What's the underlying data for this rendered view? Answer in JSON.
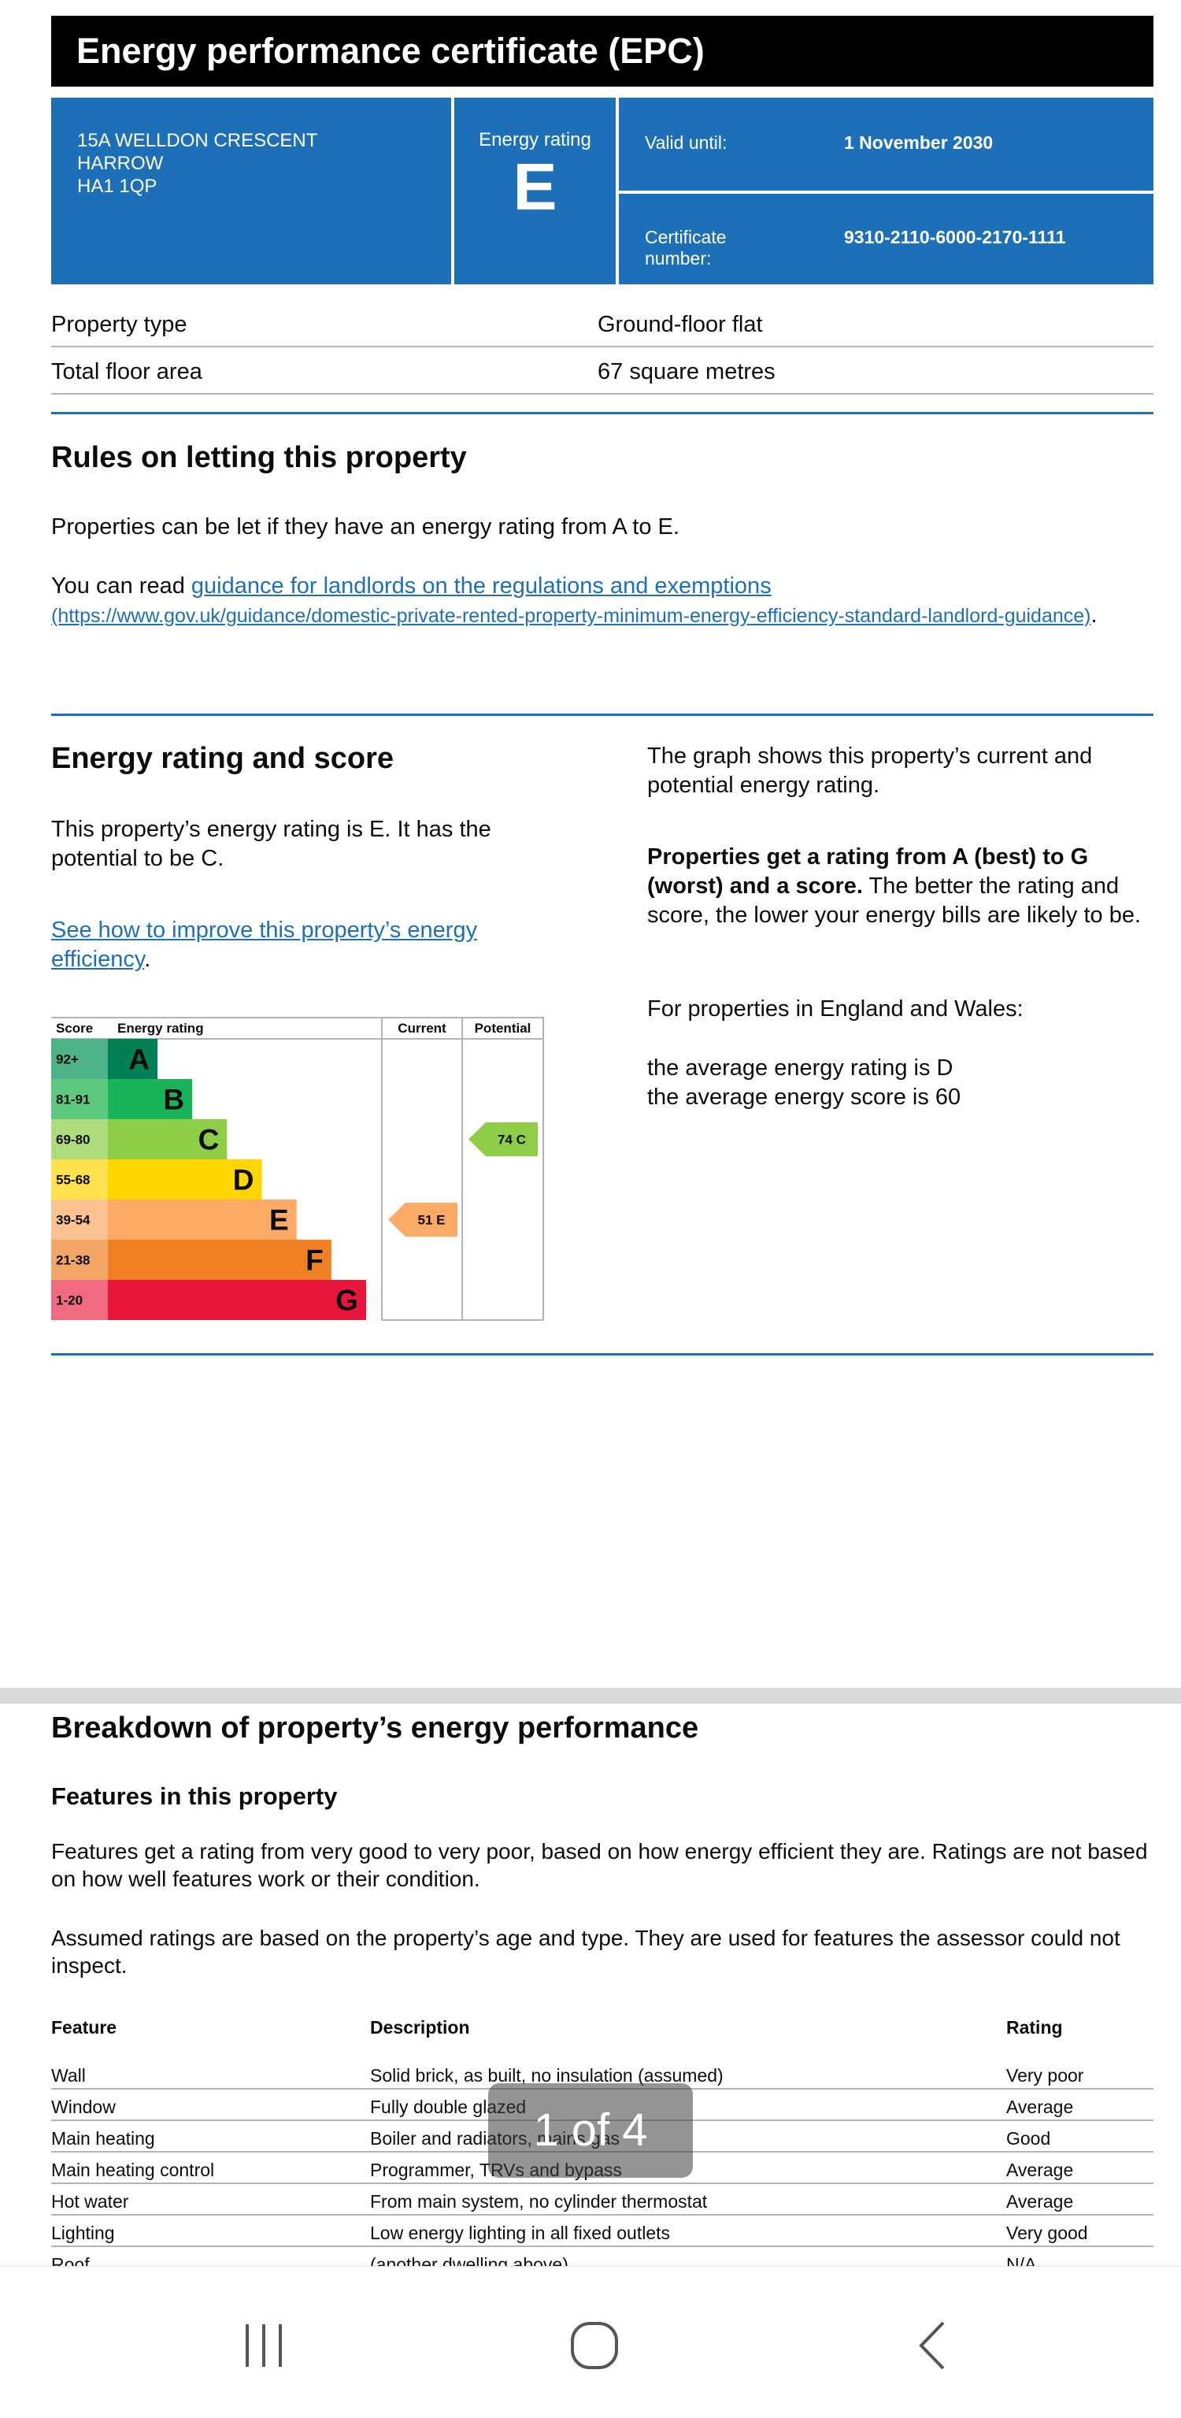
{
  "header": {
    "title": "Energy performance certificate (EPC)"
  },
  "address": {
    "line1": "15A WELLDON CRESCENT",
    "line2": "HARROW",
    "line3": "HA1 1QP"
  },
  "energy_rating": {
    "label": "Energy rating",
    "letter": "E"
  },
  "validity": {
    "label": "Valid until:",
    "value": "1 November 2030"
  },
  "certificate": {
    "label_line1": "Certificate",
    "label_line2": "number:",
    "value": "9310-2110-6000-2170-1111"
  },
  "property": [
    {
      "label": "Property type",
      "value": "Ground-floor flat"
    },
    {
      "label": "Total floor area",
      "value": "67 square metres"
    }
  ],
  "rules": {
    "heading": "Rules on letting this property",
    "para1": "Properties can be let if they have an energy rating from A to E.",
    "para2_prefix": "You can read ",
    "link_text": "guidance for landlords on the regulations and exemptions",
    "link_url_text": "(https://www.gov.uk/guidance/domestic-private-rented-property-minimum-energy-efficiency-standard-landlord-guidance)",
    "period": "."
  },
  "score_section": {
    "heading": "Energy rating and score",
    "para1": "This property’s energy rating is E. It has the potential to be C.",
    "improve_link": "See how to improve this property’s energy efficiency",
    "period": ".",
    "right_para1": "The graph shows this property’s current and potential energy rating.",
    "right_bold": "Properties get a rating from A (best) to G (worst) and a score.",
    "right_rest": " The better the rating and score, the lower your energy bills are likely to be.",
    "right_para3": "For properties in England and Wales:",
    "avg_rating": "the average energy rating is D",
    "avg_score": "the average energy score is 60"
  },
  "chart_data": {
    "type": "bar",
    "title": "Energy rating",
    "headers": {
      "score": "Score",
      "rating": "Energy rating",
      "current": "Current",
      "potential": "Potential"
    },
    "bands": [
      {
        "letter": "A",
        "range": "92+",
        "color": "#008054",
        "label_color": "#4fb38a"
      },
      {
        "letter": "B",
        "range": "81-91",
        "color": "#19b459",
        "label_color": "#5dc97f"
      },
      {
        "letter": "C",
        "range": "69-80",
        "color": "#8dce46",
        "label_color": "#aedc7d"
      },
      {
        "letter": "D",
        "range": "55-68",
        "color": "#ffd500",
        "label_color": "#ffe14d"
      },
      {
        "letter": "E",
        "range": "39-54",
        "color": "#fcaa65",
        "label_color": "#fdc291"
      },
      {
        "letter": "F",
        "range": "21-38",
        "color": "#ef8023",
        "label_color": "#f3a565"
      },
      {
        "letter": "G",
        "range": "1-20",
        "color": "#e9153b",
        "label_color": "#f06a82"
      }
    ],
    "current": {
      "score": 51,
      "letter": "E",
      "label": "51 E",
      "color": "#fcaa65"
    },
    "potential": {
      "score": 74,
      "letter": "C",
      "label": "74 C",
      "color": "#8dce46"
    }
  },
  "breakdown": {
    "heading": "Breakdown of property’s energy performance",
    "subheading": "Features in this property",
    "para1": "Features get a rating from very good to very poor, based on how energy efficient they are. Ratings are not based on how well features work or their condition.",
    "para2": "Assumed ratings are based on the property’s age and type. They are used for features the assessor could not inspect.",
    "columns": [
      "Feature",
      "Description",
      "Rating"
    ],
    "rows": [
      {
        "feature": "Wall",
        "description": "Solid brick, as built, no insulation (assumed)",
        "rating": "Very poor"
      },
      {
        "feature": "Window",
        "description": "Fully double glazed",
        "rating": "Average"
      },
      {
        "feature": "Main heating",
        "description": "Boiler and radiators, mains gas",
        "rating": "Good"
      },
      {
        "feature": "Main heating control",
        "description": "Programmer, TRVs and bypass",
        "rating": "Average"
      },
      {
        "feature": "Hot water",
        "description": "From main system, no cylinder thermostat",
        "rating": "Average"
      },
      {
        "feature": "Lighting",
        "description": "Low energy lighting in all fixed outlets",
        "rating": "Very good"
      },
      {
        "feature": "Roof",
        "description": "(another dwelling above)",
        "rating": "N/A"
      }
    ]
  },
  "pager": {
    "text": "1 of 4"
  },
  "colors": {
    "brand_blue": "#1d70b8",
    "title_bg": "#000000"
  }
}
